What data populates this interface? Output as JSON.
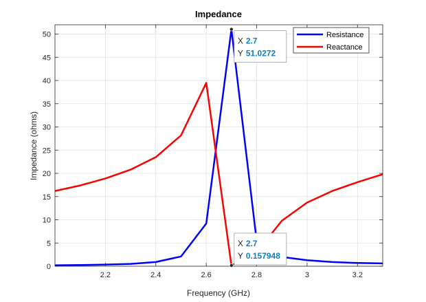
{
  "chart_data": {
    "type": "line",
    "title": "Impedance",
    "xlabel": "Frequency (GHz)",
    "ylabel": "Impedance (ohms)",
    "xlim": [
      2.0,
      3.3
    ],
    "ylim": [
      0,
      52
    ],
    "xticks": [
      "2.2",
      "2.4",
      "2.6",
      "2.8",
      "3",
      "3.2"
    ],
    "xtick_values": [
      2.2,
      2.4,
      2.6,
      2.8,
      3.0,
      3.2
    ],
    "yticks": [
      "0",
      "5",
      "10",
      "15",
      "20",
      "25",
      "30",
      "35",
      "40",
      "45",
      "50"
    ],
    "ytick_values": [
      0,
      5,
      10,
      15,
      20,
      25,
      30,
      35,
      40,
      45,
      50
    ],
    "grid": true,
    "legend_position": "top-right",
    "x": [
      2.0,
      2.1,
      2.2,
      2.3,
      2.4,
      2.5,
      2.6,
      2.7,
      2.8,
      2.9,
      3.0,
      3.1,
      3.2,
      3.3
    ],
    "series": [
      {
        "name": "Resistance",
        "color": "#0000ff",
        "values": [
          0.2,
          0.25,
          0.35,
          0.5,
          0.9,
          2.1,
          9.2,
          51.0272,
          5.5,
          2.0,
          1.3,
          0.9,
          0.7,
          0.6
        ]
      },
      {
        "name": "Reactance",
        "color": "#ff0000",
        "values": [
          16.2,
          17.4,
          18.9,
          20.8,
          23.5,
          28.2,
          39.5,
          0.157948,
          3.0,
          9.8,
          13.7,
          16.2,
          18.1,
          19.8
        ]
      }
    ],
    "datatips": [
      {
        "x_label": "X",
        "x_value": "2.7",
        "y_label": "Y",
        "y_value": "51.0272",
        "x": 2.7,
        "y": 51.0272
      },
      {
        "x_label": "X",
        "x_value": "2.7",
        "y_label": "Y",
        "y_value": "0.157948",
        "x": 2.7,
        "y": 0.157948
      }
    ]
  }
}
